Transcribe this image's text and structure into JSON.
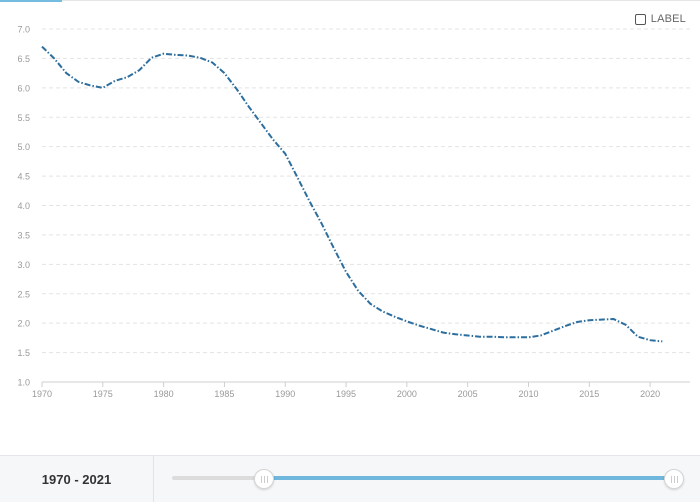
{
  "chart_data": {
    "type": "line",
    "x": [
      1970,
      1971,
      1972,
      1973,
      1974,
      1975,
      1976,
      1977,
      1978,
      1979,
      1980,
      1981,
      1982,
      1983,
      1984,
      1985,
      1986,
      1987,
      1988,
      1989,
      1990,
      1991,
      1992,
      1993,
      1994,
      1995,
      1996,
      1997,
      1998,
      1999,
      2000,
      2001,
      2002,
      2003,
      2004,
      2005,
      2006,
      2007,
      2008,
      2009,
      2010,
      2011,
      2012,
      2013,
      2014,
      2015,
      2016,
      2017,
      2018,
      2019,
      2020,
      2021
    ],
    "series": [
      {
        "values": [
          6.7,
          6.5,
          6.25,
          6.1,
          6.04,
          6.0,
          6.12,
          6.18,
          6.3,
          6.51,
          6.58,
          6.56,
          6.55,
          6.51,
          6.43,
          6.25,
          5.98,
          5.68,
          5.4,
          5.12,
          4.88,
          4.48,
          4.07,
          3.69,
          3.27,
          2.87,
          2.55,
          2.33,
          2.2,
          2.11,
          2.03,
          1.96,
          1.9,
          1.84,
          1.81,
          1.79,
          1.77,
          1.77,
          1.76,
          1.76,
          1.76,
          1.79,
          1.87,
          1.95,
          2.02,
          2.05,
          2.06,
          2.07,
          1.97,
          1.77,
          1.71,
          1.69
        ]
      }
    ],
    "yticks": [
      1.0,
      1.5,
      2.0,
      2.5,
      3.0,
      3.5,
      4.0,
      4.5,
      5.0,
      5.5,
      6.0,
      6.5,
      7.0
    ],
    "ytick_labels": [
      "1.0",
      "1.5",
      "2.0",
      "2.5",
      "3.0",
      "3.5",
      "4.0",
      "4.5",
      "5.0",
      "5.5",
      "6.0",
      "6.5",
      "7.0"
    ],
    "xticks": [
      1970,
      1975,
      1980,
      1985,
      1990,
      1995,
      2000,
      2005,
      2010,
      2015,
      2020
    ],
    "xtick_labels": [
      "1970",
      "1975",
      "1980",
      "1985",
      "1990",
      "1995",
      "2000",
      "2005",
      "2010",
      "2015",
      "2020"
    ],
    "xlim": [
      1970,
      2021.8
    ],
    "ylim": [
      1.0,
      7.0
    ],
    "grid": true,
    "line_color": "#2c6e9e",
    "grid_color": "#e3e3e3",
    "tick_color": "#999999"
  },
  "controls": {
    "label_toggle": "LABEL",
    "range_start": "1970",
    "range_separator": " - ",
    "range_end": "2021"
  },
  "colors": {
    "slider_fill": "#6fb7dc",
    "accent_tab": "#74bde0"
  }
}
